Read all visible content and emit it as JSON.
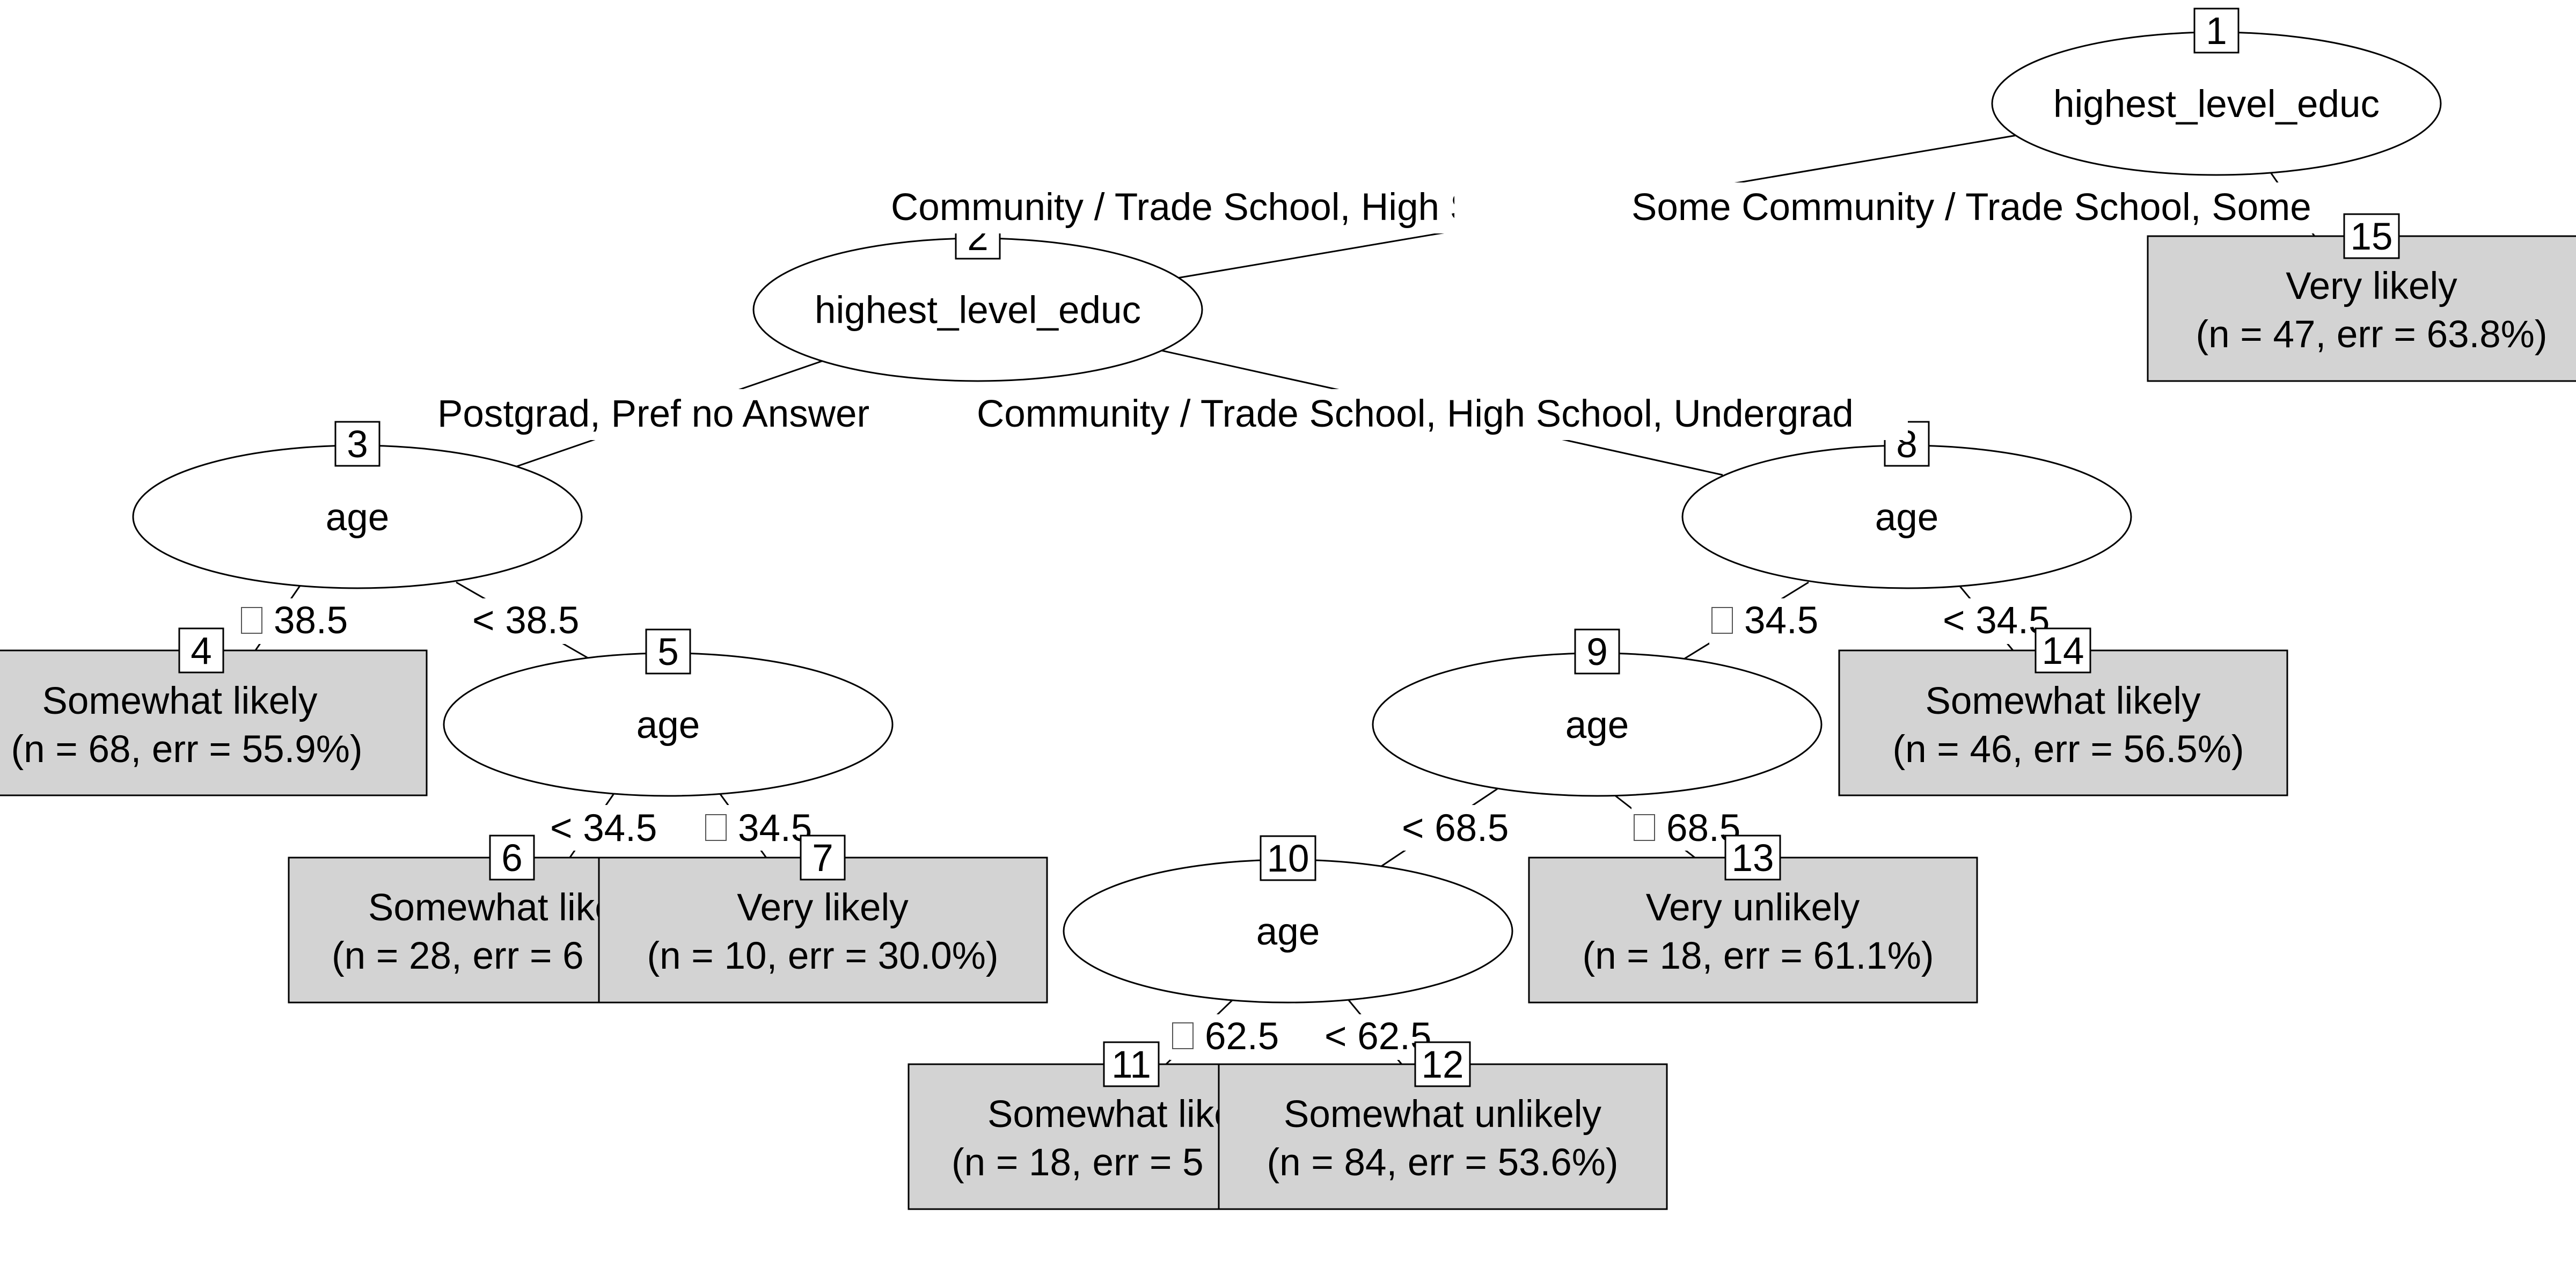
{
  "tree": {
    "nodes": [
      {
        "id": "1",
        "label": "highest_level_educ"
      },
      {
        "id": "2",
        "label": "highest_level_educ"
      },
      {
        "id": "3",
        "label": "age"
      },
      {
        "id": "5",
        "label": "age"
      },
      {
        "id": "8",
        "label": "age"
      },
      {
        "id": "9",
        "label": "age"
      },
      {
        "id": "10",
        "label": "age"
      }
    ],
    "leaves": [
      {
        "id": "4",
        "class": "Somewhat likely",
        "stats": "(n = 68, err = 55.9%)"
      },
      {
        "id": "6",
        "class": "Somewhat likely",
        "stats": "(n = 28, err = 6"
      },
      {
        "id": "7",
        "class": "Very likely",
        "stats": "(n = 10, err = 30.0%)"
      },
      {
        "id": "11",
        "class": "Somewhat likely",
        "stats": "(n = 18, err = 5"
      },
      {
        "id": "12",
        "class": "Somewhat unlikely",
        "stats": "(n = 84, err = 53.6%)"
      },
      {
        "id": "13",
        "class": "Very unlikely",
        "stats": "(n = 18, err = 61.1%)"
      },
      {
        "id": "14",
        "class": "Somewhat likely",
        "stats": "(n = 46, err = 56.5%)"
      },
      {
        "id": "15",
        "class": "Very likely",
        "stats": "(n = 47, err = 63.8%)"
      }
    ],
    "edge_labels": [
      {
        "text": "Community / Trade School, High School, Postgrad, P"
      },
      {
        "text": "Some Community / Trade School, Some"
      },
      {
        "text": "Postgrad, Pref no Answer"
      },
      {
        "text": "Community / Trade School, High School, Undergrad"
      },
      {
        "text": "38.5",
        "glyph": true
      },
      {
        "text": "< 38.5"
      },
      {
        "text": "< 34.5"
      },
      {
        "text": "34.5",
        "glyph": true
      },
      {
        "text": "34.5",
        "glyph": true
      },
      {
        "text": "< 34.5"
      },
      {
        "text": "< 68.5"
      },
      {
        "text": "68.5",
        "glyph": true
      },
      {
        "text": "62.5",
        "glyph": true
      },
      {
        "text": "< 62.5"
      }
    ]
  }
}
